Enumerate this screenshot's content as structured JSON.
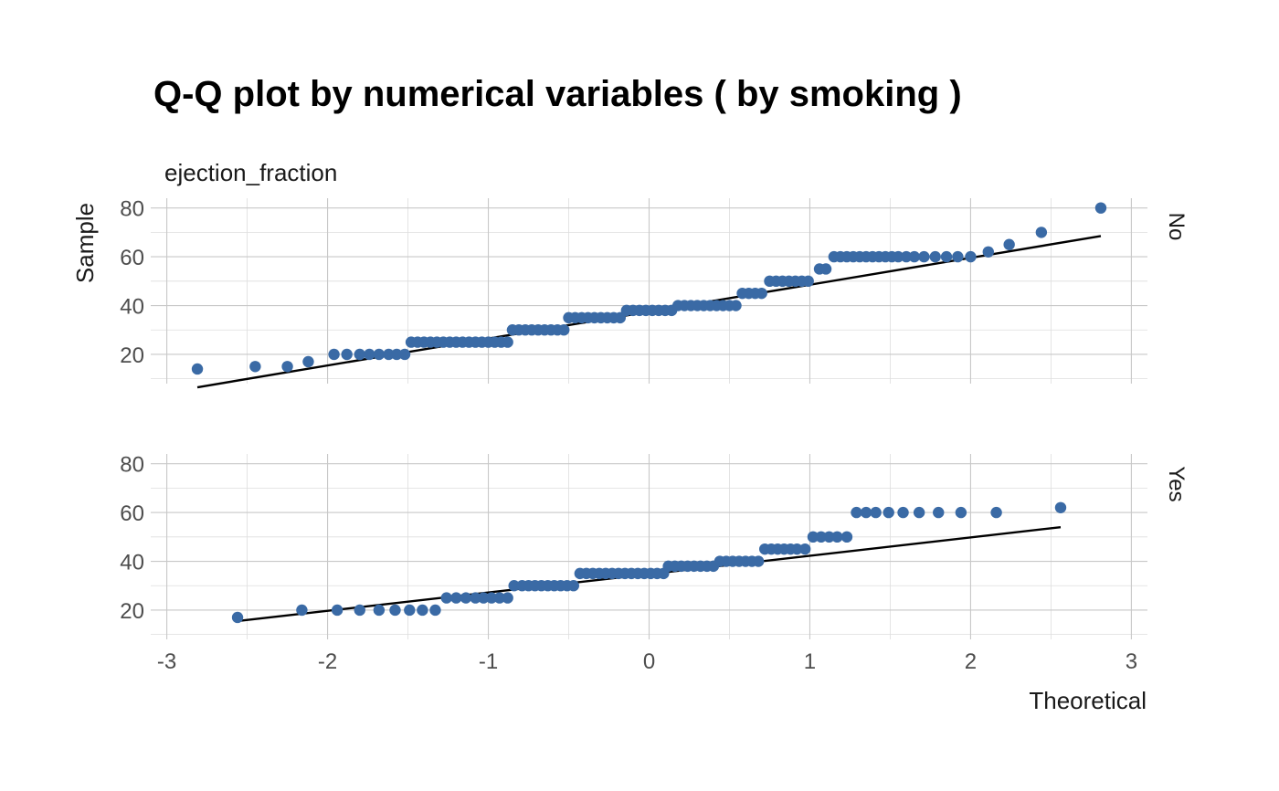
{
  "chart_data": {
    "type": "scatter",
    "title": "Q-Q plot by numerical variables ( by smoking )",
    "subtitle": "ejection_fraction",
    "xlabel": "Theoretical",
    "ylabel": "Sample",
    "xlim": [
      -3,
      3
    ],
    "ylim": [
      10,
      80
    ],
    "x_ticks": [
      -3,
      -2,
      -1,
      0,
      1,
      2,
      3
    ],
    "y_ticks": [
      20,
      40,
      60,
      80
    ],
    "grid": true,
    "point_color": "#3a6aa5",
    "line_color": "#000000",
    "panels": [
      {
        "strip_label": "No",
        "reference_line": [
          [
            -2.81,
            6.5
          ],
          [
            2.81,
            68.5
          ]
        ],
        "points": [
          [
            -2.81,
            14
          ],
          [
            -2.45,
            15
          ],
          [
            -2.25,
            15
          ],
          [
            -2.12,
            17
          ],
          [
            -1.96,
            20
          ],
          [
            -1.88,
            20
          ],
          [
            -1.8,
            20
          ],
          [
            -1.74,
            20
          ],
          [
            -1.68,
            20
          ],
          [
            -1.62,
            20
          ],
          [
            -1.57,
            20
          ],
          [
            -1.52,
            20
          ],
          [
            -1.48,
            25
          ],
          [
            -1.44,
            25
          ],
          [
            -1.4,
            25
          ],
          [
            -1.36,
            25
          ],
          [
            -1.32,
            25
          ],
          [
            -1.28,
            25
          ],
          [
            -1.24,
            25
          ],
          [
            -1.2,
            25
          ],
          [
            -1.16,
            25
          ],
          [
            -1.12,
            25
          ],
          [
            -1.08,
            25
          ],
          [
            -1.04,
            25
          ],
          [
            -1.0,
            25
          ],
          [
            -0.96,
            25
          ],
          [
            -0.92,
            25
          ],
          [
            -0.88,
            25
          ],
          [
            -0.85,
            30
          ],
          [
            -0.81,
            30
          ],
          [
            -0.77,
            30
          ],
          [
            -0.73,
            30
          ],
          [
            -0.69,
            30
          ],
          [
            -0.65,
            30
          ],
          [
            -0.61,
            30
          ],
          [
            -0.57,
            30
          ],
          [
            -0.53,
            30
          ],
          [
            -0.5,
            35
          ],
          [
            -0.46,
            35
          ],
          [
            -0.42,
            35
          ],
          [
            -0.38,
            35
          ],
          [
            -0.34,
            35
          ],
          [
            -0.3,
            35
          ],
          [
            -0.26,
            35
          ],
          [
            -0.22,
            35
          ],
          [
            -0.18,
            35
          ],
          [
            -0.14,
            38
          ],
          [
            -0.1,
            38
          ],
          [
            -0.06,
            38
          ],
          [
            -0.02,
            38
          ],
          [
            0.02,
            38
          ],
          [
            0.06,
            38
          ],
          [
            0.1,
            38
          ],
          [
            0.14,
            38
          ],
          [
            0.18,
            40
          ],
          [
            0.22,
            40
          ],
          [
            0.26,
            40
          ],
          [
            0.3,
            40
          ],
          [
            0.34,
            40
          ],
          [
            0.38,
            40
          ],
          [
            0.42,
            40
          ],
          [
            0.46,
            40
          ],
          [
            0.5,
            40
          ],
          [
            0.54,
            40
          ],
          [
            0.58,
            45
          ],
          [
            0.62,
            45
          ],
          [
            0.66,
            45
          ],
          [
            0.7,
            45
          ],
          [
            0.75,
            50
          ],
          [
            0.79,
            50
          ],
          [
            0.83,
            50
          ],
          [
            0.87,
            50
          ],
          [
            0.91,
            50
          ],
          [
            0.95,
            50
          ],
          [
            0.99,
            50
          ],
          [
            1.06,
            55
          ],
          [
            1.1,
            55
          ],
          [
            1.15,
            60
          ],
          [
            1.19,
            60
          ],
          [
            1.23,
            60
          ],
          [
            1.27,
            60
          ],
          [
            1.31,
            60
          ],
          [
            1.35,
            60
          ],
          [
            1.39,
            60
          ],
          [
            1.43,
            60
          ],
          [
            1.47,
            60
          ],
          [
            1.51,
            60
          ],
          [
            1.55,
            60
          ],
          [
            1.6,
            60
          ],
          [
            1.65,
            60
          ],
          [
            1.71,
            60
          ],
          [
            1.78,
            60
          ],
          [
            1.85,
            60
          ],
          [
            1.92,
            60
          ],
          [
            2.0,
            60
          ],
          [
            2.11,
            62
          ],
          [
            2.24,
            65
          ],
          [
            2.44,
            70
          ],
          [
            2.81,
            80
          ]
        ]
      },
      {
        "strip_label": "Yes",
        "reference_line": [
          [
            -2.56,
            15.5
          ],
          [
            2.56,
            54
          ]
        ],
        "points": [
          [
            -2.56,
            17
          ],
          [
            -2.16,
            20
          ],
          [
            -1.94,
            20
          ],
          [
            -1.8,
            20
          ],
          [
            -1.68,
            20
          ],
          [
            -1.58,
            20
          ],
          [
            -1.49,
            20
          ],
          [
            -1.41,
            20
          ],
          [
            -1.33,
            20
          ],
          [
            -1.26,
            25
          ],
          [
            -1.2,
            25
          ],
          [
            -1.14,
            25
          ],
          [
            -1.08,
            25
          ],
          [
            -1.03,
            25
          ],
          [
            -0.98,
            25
          ],
          [
            -0.93,
            25
          ],
          [
            -0.88,
            25
          ],
          [
            -0.84,
            30
          ],
          [
            -0.79,
            30
          ],
          [
            -0.75,
            30
          ],
          [
            -0.71,
            30
          ],
          [
            -0.67,
            30
          ],
          [
            -0.63,
            30
          ],
          [
            -0.59,
            30
          ],
          [
            -0.55,
            30
          ],
          [
            -0.51,
            30
          ],
          [
            -0.47,
            30
          ],
          [
            -0.43,
            35
          ],
          [
            -0.39,
            35
          ],
          [
            -0.35,
            35
          ],
          [
            -0.31,
            35
          ],
          [
            -0.27,
            35
          ],
          [
            -0.23,
            35
          ],
          [
            -0.19,
            35
          ],
          [
            -0.15,
            35
          ],
          [
            -0.11,
            35
          ],
          [
            -0.07,
            35
          ],
          [
            -0.03,
            35
          ],
          [
            0.01,
            35
          ],
          [
            0.05,
            35
          ],
          [
            0.09,
            35
          ],
          [
            0.12,
            38
          ],
          [
            0.16,
            38
          ],
          [
            0.2,
            38
          ],
          [
            0.24,
            38
          ],
          [
            0.28,
            38
          ],
          [
            0.32,
            38
          ],
          [
            0.36,
            38
          ],
          [
            0.4,
            38
          ],
          [
            0.44,
            40
          ],
          [
            0.48,
            40
          ],
          [
            0.52,
            40
          ],
          [
            0.56,
            40
          ],
          [
            0.6,
            40
          ],
          [
            0.64,
            40
          ],
          [
            0.68,
            40
          ],
          [
            0.72,
            45
          ],
          [
            0.76,
            45
          ],
          [
            0.8,
            45
          ],
          [
            0.84,
            45
          ],
          [
            0.88,
            45
          ],
          [
            0.92,
            45
          ],
          [
            0.97,
            45
          ],
          [
            1.02,
            50
          ],
          [
            1.07,
            50
          ],
          [
            1.12,
            50
          ],
          [
            1.17,
            50
          ],
          [
            1.23,
            50
          ],
          [
            1.29,
            60
          ],
          [
            1.35,
            60
          ],
          [
            1.41,
            60
          ],
          [
            1.49,
            60
          ],
          [
            1.58,
            60
          ],
          [
            1.68,
            60
          ],
          [
            1.8,
            60
          ],
          [
            1.94,
            60
          ],
          [
            2.16,
            60
          ],
          [
            2.56,
            62
          ]
        ]
      }
    ]
  }
}
